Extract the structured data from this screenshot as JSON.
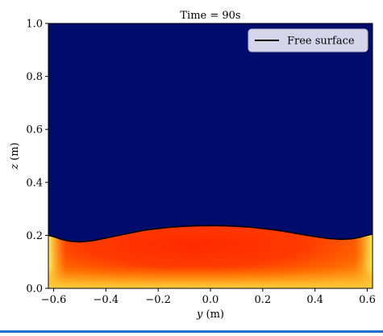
{
  "chart_data": {
    "type": "heatmap",
    "title": "Time = 90s",
    "xlabel": "y (m)",
    "ylabel": "z (m)",
    "xlim": [
      -0.62,
      0.62
    ],
    "ylim": [
      0.0,
      1.0
    ],
    "xticks": [
      {
        "value": -0.6,
        "label": "−0.6"
      },
      {
        "value": -0.4,
        "label": "−0.4"
      },
      {
        "value": -0.2,
        "label": "−0.2"
      },
      {
        "value": 0.0,
        "label": "0.0"
      },
      {
        "value": 0.2,
        "label": "0.2"
      },
      {
        "value": 0.4,
        "label": "0.4"
      },
      {
        "value": 0.6,
        "label": "0.6"
      }
    ],
    "yticks": [
      {
        "value": 0.0,
        "label": "0.0"
      },
      {
        "value": 0.2,
        "label": "0.2"
      },
      {
        "value": 0.4,
        "label": "0.4"
      },
      {
        "value": 0.6,
        "label": "0.6"
      },
      {
        "value": 0.8,
        "label": "0.8"
      },
      {
        "value": 1.0,
        "label": "1.0"
      }
    ],
    "legend": {
      "position": "top-right",
      "entries": [
        {
          "label": "Free surface",
          "color": "#000000"
        }
      ]
    },
    "series": [
      {
        "name": "Free surface",
        "x": [
          -0.62,
          -0.6,
          -0.57,
          -0.54,
          -0.5,
          -0.45,
          -0.4,
          -0.35,
          -0.3,
          -0.25,
          -0.2,
          -0.15,
          -0.1,
          -0.05,
          0.0,
          0.05,
          0.1,
          0.15,
          0.2,
          0.25,
          0.3,
          0.35,
          0.4,
          0.45,
          0.5,
          0.54,
          0.57,
          0.6,
          0.62
        ],
        "y": [
          0.2,
          0.195,
          0.185,
          0.178,
          0.175,
          0.18,
          0.19,
          0.2,
          0.21,
          0.22,
          0.226,
          0.231,
          0.234,
          0.236,
          0.237,
          0.236,
          0.234,
          0.231,
          0.226,
          0.22,
          0.212,
          0.203,
          0.195,
          0.188,
          0.185,
          0.187,
          0.192,
          0.2,
          0.205
        ]
      }
    ],
    "colors": {
      "air": "#000c6b",
      "core": "#ff2a00",
      "mid": "#ff6a00",
      "edge": "#ffe040",
      "surface": "#000000"
    }
  }
}
